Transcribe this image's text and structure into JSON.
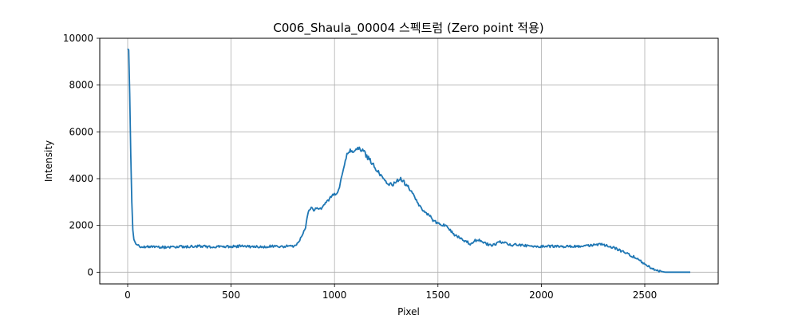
{
  "chart_data": {
    "type": "line",
    "title": "C006_Shaula_00004 스펙트럼 (Zero point 적용)",
    "xlabel": "Pixel",
    "ylabel": "Intensity",
    "xlim": [
      -135,
      2855
    ],
    "ylim": [
      -500,
      10000
    ],
    "xticks": [
      0,
      500,
      1000,
      1500,
      2000,
      2500
    ],
    "yticks": [
      0,
      2000,
      4000,
      6000,
      8000,
      10000
    ],
    "grid": true,
    "series": [
      {
        "color": "#1f77b4",
        "x": [
          0,
          5,
          10,
          15,
          20,
          25,
          30,
          40,
          60,
          100,
          150,
          200,
          250,
          300,
          350,
          400,
          450,
          500,
          550,
          600,
          650,
          700,
          750,
          800,
          820,
          840,
          860,
          870,
          880,
          890,
          900,
          920,
          940,
          960,
          980,
          1000,
          1020,
          1040,
          1060,
          1080,
          1100,
          1120,
          1140,
          1160,
          1180,
          1200,
          1220,
          1240,
          1260,
          1280,
          1300,
          1320,
          1340,
          1360,
          1380,
          1400,
          1420,
          1440,
          1460,
          1480,
          1500,
          1520,
          1540,
          1560,
          1580,
          1600,
          1620,
          1640,
          1660,
          1680,
          1700,
          1720,
          1740,
          1760,
          1780,
          1800,
          1820,
          1840,
          1860,
          1880,
          1900,
          1950,
          2000,
          2050,
          2100,
          2150,
          2200,
          2250,
          2280,
          2300,
          2350,
          2400,
          2450,
          2500,
          2550,
          2600,
          2620,
          2650,
          2700,
          2720
        ],
        "y": [
          9550,
          9500,
          7600,
          5000,
          3000,
          1800,
          1400,
          1200,
          1100,
          1080,
          1070,
          1060,
          1100,
          1090,
          1120,
          1080,
          1090,
          1100,
          1110,
          1090,
          1080,
          1110,
          1100,
          1120,
          1200,
          1500,
          1900,
          2500,
          2700,
          2750,
          2650,
          2700,
          2750,
          2950,
          3200,
          3300,
          3500,
          4300,
          5000,
          5200,
          5200,
          5250,
          5200,
          4900,
          4700,
          4400,
          4200,
          4000,
          3800,
          3700,
          3900,
          4000,
          3800,
          3600,
          3300,
          3000,
          2700,
          2500,
          2400,
          2200,
          2100,
          2050,
          2000,
          1800,
          1600,
          1500,
          1400,
          1300,
          1200,
          1350,
          1380,
          1250,
          1200,
          1150,
          1200,
          1300,
          1250,
          1200,
          1150,
          1200,
          1150,
          1120,
          1100,
          1110,
          1090,
          1100,
          1120,
          1150,
          1200,
          1180,
          1050,
          850,
          650,
          350,
          80,
          0,
          0,
          0,
          0,
          0
        ]
      }
    ]
  }
}
